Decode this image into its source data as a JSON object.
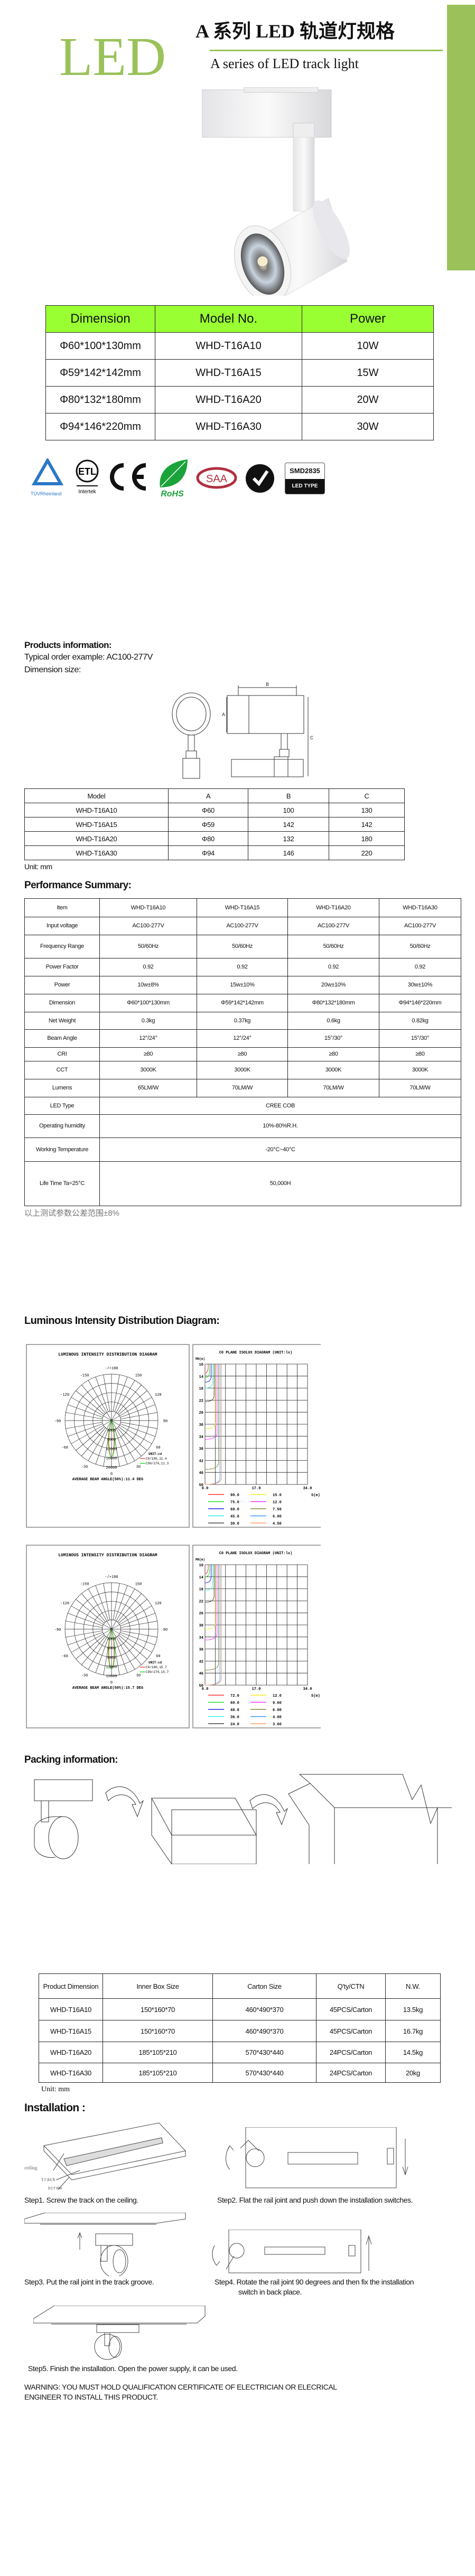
{
  "header": {
    "logo_text": "LED",
    "title_cn": "A 系列 LED 轨道灯规格",
    "subtitle": "A series of LED track light",
    "accent_color": "#9bc25a"
  },
  "spec_table": {
    "headers": [
      "Dimension",
      "Model No.",
      "Power"
    ],
    "rows": [
      [
        "Φ60*100*130mm",
        "WHD-T16A10",
        "10W"
      ],
      [
        "Φ59*142*142mm",
        "WHD-T16A15",
        "15W"
      ],
      [
        "Φ80*132*180mm",
        "WHD-T16A20",
        "20W"
      ],
      [
        "Φ94*146*220mm",
        "WHD-T16A30",
        "30W"
      ]
    ],
    "header_color": "#99ff33"
  },
  "certifications": {
    "tuv": "TÜVRheinland",
    "etl": "ETL",
    "etl_sub": "Intertek",
    "ce": "CE",
    "rohs": "RoHS",
    "saa": "SAA",
    "smd_top": "SMD2835",
    "smd_bottom": "LED TYPE"
  },
  "products_info": {
    "heading": "Products information:",
    "order_example": "Typical order example: AC100-277V",
    "dimension_label": "Dimension size:",
    "drawing_labels": {
      "a": "A",
      "b": "B",
      "c": "C"
    }
  },
  "dimension_table": {
    "headers": [
      "Model",
      "A",
      "B",
      "C"
    ],
    "rows": [
      [
        "WHD-T16A10",
        "Φ60",
        "100",
        "130"
      ],
      [
        "WHD-T16A15",
        "Φ59",
        "142",
        "142"
      ],
      [
        "WHD-T16A20",
        "Φ80",
        "132",
        "180"
      ],
      [
        "WHD-T16A30",
        "Φ94",
        "146",
        "220"
      ]
    ],
    "unit": "Unit: mm"
  },
  "performance": {
    "heading": "Performance Summary:",
    "headers": [
      "Item",
      "WHD-T16A10",
      "WHD-T16A15",
      "WHD-T16A20",
      "WHD-T16A30"
    ],
    "rows": [
      [
        "Input voltage",
        "AC100-277V",
        "AC100-277V",
        "AC100-277V",
        "AC100-277V"
      ],
      [
        "Frequency Range",
        "50/60Hz",
        "50/60Hz",
        "50/60Hz",
        "50/60Hz"
      ],
      [
        "Power Factor",
        "0.92",
        "0.92",
        "0.92",
        "0.92"
      ],
      [
        "Power",
        "10w±8%",
        "15w±10%",
        "20w±10%",
        "30w±10%"
      ],
      [
        "Dimension",
        "Φ60*100*130mm",
        "Φ59*142*142mm",
        "Φ80*132*180mm",
        "Φ94*146*220mm"
      ],
      [
        "Net Weight",
        "0.3kg",
        "0.37kg",
        "0.6kg",
        "0.82kg"
      ],
      [
        "Beam Angle",
        "12°/24°",
        "12°/24°",
        "15°/30°",
        "15°/30°"
      ],
      [
        "CRI",
        "≥80",
        "≥80",
        "≥80",
        "≥80"
      ],
      [
        "CCT",
        "3000K",
        "3000K",
        "3000K",
        "3000K"
      ],
      [
        "Lumens",
        "65LM/W",
        "70LM/W",
        "70LM/W",
        "70LM/W"
      ]
    ],
    "span_rows": [
      [
        "LED Type",
        "CREE COB"
      ],
      [
        "Operating humidity",
        "10%-80%R.H."
      ],
      [
        "Working Temperature",
        "-20°C~40°C"
      ],
      [
        "Life Time Ta=25°C",
        "50,000H"
      ]
    ],
    "tolerance_note": "以上测试参数公差范围±8%"
  },
  "luminous": {
    "heading": "Luminous Intensity Distribution Diagram:",
    "diagrams": [
      {
        "polar": {
          "title": "LUMINOUS INTENSITY DISTRIBUTION DIAGRAM",
          "angle_labels": [
            "-/+180",
            "150",
            "120",
            "90",
            "60",
            "30",
            "0",
            "-30",
            "-60",
            "-90",
            "-120",
            "-150"
          ],
          "intensity_ticks": [
            "0",
            "4000",
            "8000",
            "12000",
            "16000",
            "20000"
          ],
          "unit": "UNIT:cd",
          "series": [
            {
              "name": "C0/180,11.4",
              "color": "#ff5050"
            },
            {
              "name": "C90/270,11.3",
              "color": "#22dd22"
            }
          ],
          "beam_angle": "AVERAGE BEAM ANGLE(50%):11.4 DEG"
        },
        "isolux": {
          "title": "C0 PLANE ISOLUX DIAGRAM (UNIT:lx)",
          "ylabel": "MH(m)",
          "xlabel": "S(m)",
          "yticks": [
            "10",
            "14",
            "18",
            "22",
            "26",
            "30",
            "34",
            "38",
            "42",
            "46",
            "50"
          ],
          "xticks": [
            "0.0",
            "17.0",
            "34.0"
          ],
          "legend": [
            {
              "value": "90.0",
              "color": "#ff3030",
              "reach_mh": 13
            },
            {
              "value": "75.0",
              "color": "#22dd22",
              "reach_mh": 14.5
            },
            {
              "value": "60.0",
              "color": "#2020ee",
              "reach_mh": 16
            },
            {
              "value": "45.0",
              "color": "#33eeee",
              "reach_mh": 18
            },
            {
              "value": "30.0",
              "color": "#444444",
              "reach_mh": 22.5
            },
            {
              "value": "15.0",
              "color": "#eeee22",
              "reach_mh": 31.5
            },
            {
              "value": "12.0",
              "color": "#ff33ff",
              "reach_mh": 35
            },
            {
              "value": "7.50",
              "color": "#888833",
              "reach_mh": 45
            },
            {
              "value": "6.00",
              "color": "#3399ff",
              "reach_mh": 50
            },
            {
              "value": "4.50",
              "color": "#ff9966",
              "reach_mh": 52
            }
          ]
        }
      },
      {
        "polar": {
          "title": "LUMINOUS INTENSITY DISTRIBUTION DIAGRAM",
          "angle_labels": [
            "-/+180",
            "150",
            "120",
            "90",
            "60",
            "30",
            "0",
            "-30",
            "-60",
            "-90",
            "-120",
            "-150"
          ],
          "intensity_ticks": [
            "0",
            "3000",
            "6000",
            "9000",
            "12000",
            "15000"
          ],
          "unit": "UNIT:cd",
          "series": [
            {
              "name": "C0/180,15.7",
              "color": "#ff5050"
            },
            {
              "name": "C90/270,15.7",
              "color": "#22dd22"
            }
          ],
          "beam_angle": "AVERAGE BEAM ANGLE(50%):15.7 DEG"
        },
        "isolux": {
          "title": "C0 PLANE ISOLUX DIAGRAM (UNIT:lx)",
          "ylabel": "MH(m)",
          "xlabel": "S(m)",
          "yticks": [
            "10",
            "14",
            "18",
            "22",
            "26",
            "30",
            "34",
            "38",
            "42",
            "46",
            "50"
          ],
          "xticks": [
            "0.0",
            "17.0",
            "34.0"
          ],
          "legend": [
            {
              "value": "72.0",
              "color": "#ff3030",
              "reach_mh": 13
            },
            {
              "value": "60.0",
              "color": "#22dd22",
              "reach_mh": 14
            },
            {
              "value": "48.0",
              "color": "#2020ee",
              "reach_mh": 16
            },
            {
              "value": "36.0",
              "color": "#33eeee",
              "reach_mh": 18.5
            },
            {
              "value": "24.0",
              "color": "#444444",
              "reach_mh": 22.5
            },
            {
              "value": "12.0",
              "color": "#eeee22",
              "reach_mh": 31.5
            },
            {
              "value": "9.60",
              "color": "#ff33ff",
              "reach_mh": 35
            },
            {
              "value": "6.00",
              "color": "#888833",
              "reach_mh": 45
            },
            {
              "value": "4.80",
              "color": "#3399ff",
              "reach_mh": 51
            },
            {
              "value": "3.60",
              "color": "#ff9966",
              "reach_mh": 53
            }
          ]
        }
      }
    ]
  },
  "packing": {
    "heading": "Packing information:",
    "table_headers": [
      "Product Dimension",
      "Inner Box Size",
      "Carton Size",
      "Q'ty/CTN",
      "N.W."
    ],
    "rows": [
      [
        "WHD-T16A10",
        "150*160*70",
        "460*490*370",
        "45PCS/Carton",
        "13.5kg"
      ],
      [
        "WHD-T16A15",
        "150*160*70",
        "460*490*370",
        "45PCS/Carton",
        "16.7kg"
      ],
      [
        "WHD-T16A20",
        "185*105*210",
        "570*430*440",
        "24PCS/Carton",
        "14.5kg"
      ],
      [
        "WHD-T16A30",
        "185*105*210",
        "570*430*440",
        "24PCS/Carton",
        "20kg"
      ]
    ],
    "unit": "Unit: mm",
    "header_color": "#99cc00"
  },
  "installation": {
    "heading": "Installation :",
    "step1": "Step1. Screw the track on the ceiling.",
    "step1_labels": {
      "ceiling": "ceiling",
      "track": "track",
      "screw": "screw"
    },
    "step2": "Step2. Flat the rail joint and push down the installation switches.",
    "step3": "Step3. Put the rail joint in the track groove.",
    "step4_line1": "Step4. Rotate the rail joint 90 degrees and then fix the installation",
    "step4_line2": "switch in back place.",
    "step5": "Step5. Finish the installation. Open the power supply, it can be used.",
    "warning_line1": "WARNING: YOU MUST HOLD QUALIFICATION CERTIFICATE OF ELECTRICIAN OR ELECRICAL",
    "warning_line2": "ENGINEER TO INSTALL THIS PRODUCT."
  }
}
